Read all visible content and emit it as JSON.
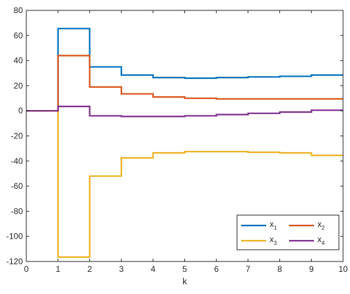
{
  "chart_data": {
    "type": "line",
    "step": true,
    "xlabel": "k",
    "ylabel": "",
    "title": "",
    "xlim": [
      0,
      10
    ],
    "ylim": [
      -120,
      80
    ],
    "xticks": [
      0,
      1,
      2,
      3,
      4,
      5,
      6,
      7,
      8,
      9,
      10
    ],
    "yticks": [
      -120,
      -100,
      -80,
      -60,
      -40,
      -20,
      0,
      20,
      40,
      60,
      80
    ],
    "grid": false,
    "legend_position": "bottom-right",
    "legend_columns": 2,
    "series": [
      {
        "name": "x",
        "name_sub": "1",
        "color": "#0072BD",
        "x": [
          0,
          1,
          2,
          3,
          4,
          5,
          6,
          7,
          8,
          9,
          10
        ],
        "values": [
          0,
          65.5,
          35,
          28.5,
          26.5,
          26,
          26.5,
          27,
          27.5,
          28.5,
          28.5
        ]
      },
      {
        "name": "x",
        "name_sub": "2",
        "color": "#D95319",
        "x": [
          0,
          1,
          2,
          3,
          4,
          5,
          6,
          7,
          8,
          9,
          10
        ],
        "values": [
          0,
          44,
          19,
          13.5,
          11,
          10,
          9.5,
          9.5,
          9.5,
          9.5,
          9.5
        ]
      },
      {
        "name": "x",
        "name_sub": "3",
        "color": "#EDB120",
        "x": [
          0,
          1,
          2,
          3,
          4,
          5,
          6,
          7,
          8,
          9,
          10
        ],
        "values": [
          0,
          -116.5,
          -52,
          -37.5,
          -33.5,
          -32.5,
          -32.5,
          -33,
          -33.5,
          -35.5,
          -35.5
        ]
      },
      {
        "name": "x",
        "name_sub": "4",
        "color": "#7E2F8E",
        "x": [
          0,
          1,
          2,
          3,
          4,
          5,
          6,
          7,
          8,
          9,
          10
        ],
        "values": [
          0,
          3.5,
          -4,
          -4.5,
          -4.5,
          -4,
          -3,
          -2,
          -1,
          0.5,
          0.5
        ]
      }
    ]
  }
}
